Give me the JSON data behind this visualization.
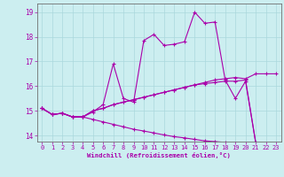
{
  "xlabel": "Windchill (Refroidissement éolien,°C)",
  "bg_color": "#cceef0",
  "grid_color": "#aad8dc",
  "line_color": "#aa00aa",
  "xlim": [
    -0.5,
    23.5
  ],
  "ylim": [
    13.75,
    19.35
  ],
  "xticks": [
    0,
    1,
    2,
    3,
    4,
    5,
    6,
    7,
    8,
    9,
    10,
    11,
    12,
    13,
    14,
    15,
    16,
    17,
    18,
    19,
    20,
    21,
    22,
    23
  ],
  "yticks": [
    14,
    15,
    16,
    17,
    18,
    19
  ],
  "x": [
    0,
    1,
    2,
    3,
    4,
    5,
    6,
    7,
    8,
    9,
    10,
    11,
    12,
    13,
    14,
    15,
    16,
    17,
    18,
    19,
    20,
    21,
    22,
    23
  ],
  "line1": [
    15.1,
    14.85,
    14.9,
    14.75,
    14.75,
    14.95,
    15.25,
    16.9,
    15.5,
    15.35,
    17.85,
    18.1,
    17.65,
    17.7,
    17.8,
    19.0,
    18.55,
    18.6,
    16.25,
    15.5,
    16.2,
    13.7,
    13.6,
    13.55
  ],
  "line2": [
    15.1,
    14.85,
    14.9,
    14.75,
    14.75,
    15.0,
    15.1,
    15.25,
    15.35,
    15.45,
    15.55,
    15.65,
    15.75,
    15.85,
    15.95,
    16.05,
    16.15,
    16.25,
    16.3,
    16.35,
    16.3,
    16.5,
    16.5,
    16.5
  ],
  "line3": [
    15.1,
    14.85,
    14.9,
    14.75,
    14.75,
    15.0,
    15.1,
    15.25,
    15.35,
    15.45,
    15.55,
    15.65,
    15.75,
    15.85,
    15.95,
    16.05,
    16.1,
    16.15,
    16.2,
    16.2,
    16.25,
    13.7,
    13.6,
    13.55
  ],
  "line4": [
    15.1,
    14.85,
    14.9,
    14.75,
    14.75,
    14.65,
    14.55,
    14.45,
    14.35,
    14.25,
    14.18,
    14.1,
    14.02,
    13.95,
    13.9,
    13.84,
    13.78,
    13.75,
    13.72,
    13.68,
    13.64,
    13.6,
    13.58,
    13.55
  ]
}
